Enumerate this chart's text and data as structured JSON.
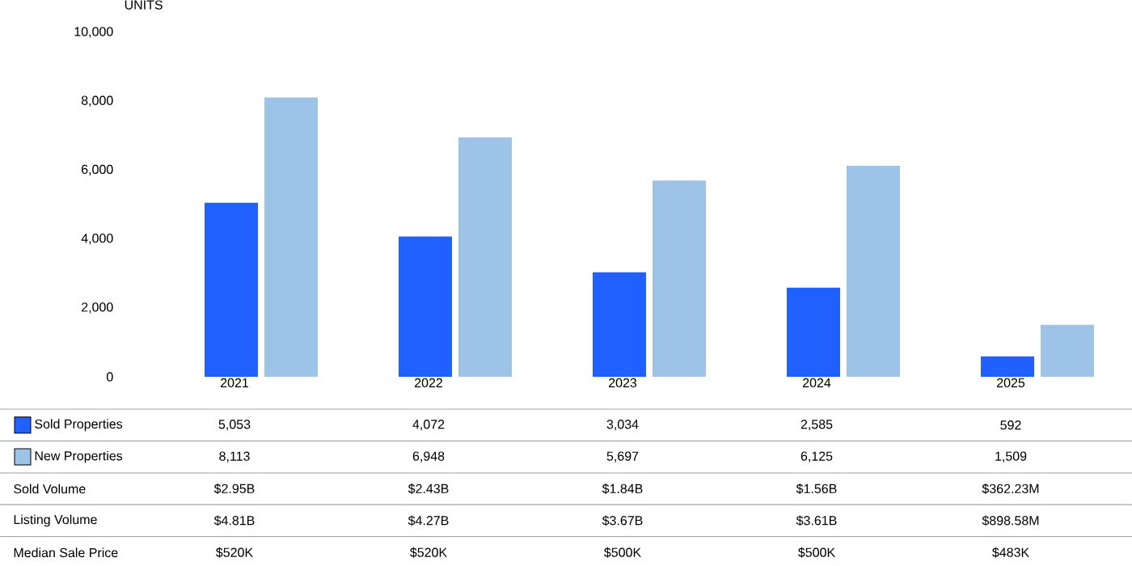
{
  "chart_data": {
    "type": "bar",
    "ylabel": "UNITS",
    "categories": [
      "2021",
      "2022",
      "2023",
      "2024",
      "2025"
    ],
    "series": [
      {
        "name": "Sold Properties",
        "color": "#2060ff",
        "values": [
          5053,
          4072,
          3034,
          2585,
          592
        ],
        "value_labels": [
          "5,053",
          "4,072",
          "3,034",
          "2,585",
          "592"
        ]
      },
      {
        "name": "New Properties",
        "color": "#9dc3e6",
        "values": [
          8113,
          6948,
          5697,
          6125,
          1509
        ],
        "value_labels": [
          "8,113",
          "6,948",
          "5,697",
          "6,125",
          "1,509"
        ]
      }
    ],
    "ylim": [
      0,
      10000
    ],
    "yticks": [
      0,
      {
        "value": 2000,
        "label": "2,000"
      },
      {
        "value": 4000,
        "label": "4,000"
      },
      {
        "value": 6000,
        "label": "6,000"
      },
      {
        "value": 8000,
        "label": "8,000"
      },
      {
        "value": 10000,
        "label": "10,000"
      }
    ],
    "grid": false,
    "legend": "bottom",
    "annotations": [
      "Sold Volume",
      "$2.95B",
      "$2.43B",
      "$1.84B",
      "$1.56B",
      "$362.23M",
      "Listing Volume",
      "$4.81B",
      "$4.27B",
      "$3.67B",
      "$3.61B",
      "$898.58M",
      "Median Sale Price",
      "$520K",
      "$520K",
      "$500K",
      "$500K",
      "$483K"
    ]
  }
}
